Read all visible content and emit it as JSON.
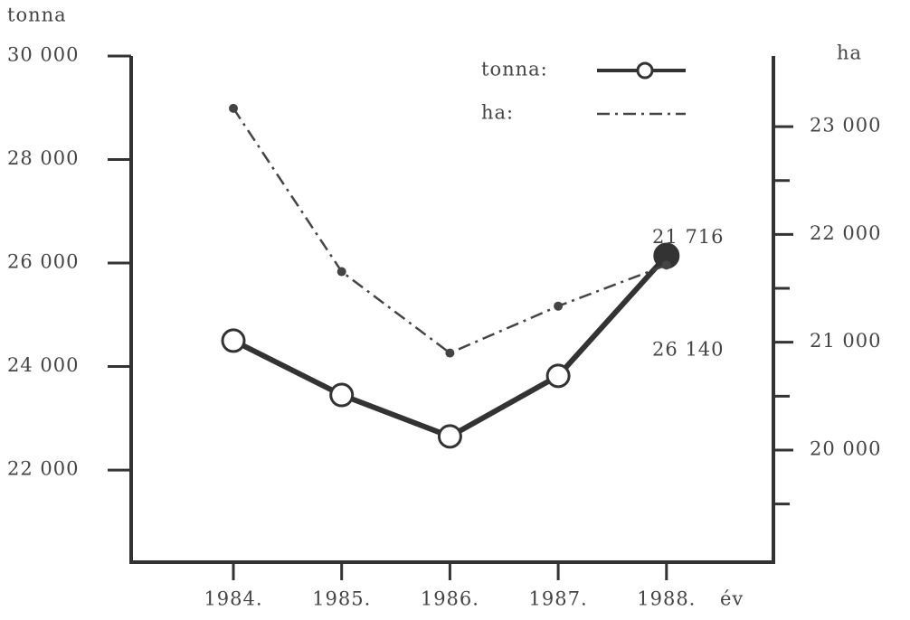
{
  "chart_data": {
    "type": "line",
    "y_label": "tonna",
    "y2_label": "ha",
    "x_label": "év",
    "categories": [
      "1984.",
      "1985.",
      "1986.",
      "1987.",
      "1988."
    ],
    "series": [
      {
        "name": "tonna:",
        "color": "#333333",
        "values": [
          24500,
          23450,
          22650,
          23820,
          26140
        ],
        "value_labels": [
          null,
          null,
          null,
          null,
          "26 140"
        ]
      },
      {
        "name": "ha:",
        "color": "#444444",
        "axis": "y2",
        "values": [
          23170,
          21655,
          20900,
          21335,
          21716
        ],
        "value_labels": [
          null,
          null,
          null,
          null,
          "21 716"
        ]
      }
    ],
    "ylim": [
      20220,
      30000
    ],
    "yticks": [
      {
        "value": 22000,
        "label": "22 000"
      },
      {
        "value": 24000,
        "label": "24 000"
      },
      {
        "value": 26000,
        "label": "26 000"
      },
      {
        "value": 28000,
        "label": "28 000"
      },
      {
        "value": 30000,
        "label": "30 000"
      }
    ],
    "y2lim": [
      18960,
      23655
    ],
    "y2ticks": [
      {
        "value": 20000,
        "label": "20 000"
      },
      {
        "value": 21000,
        "label": "21 000"
      },
      {
        "value": 22000,
        "label": "22 000"
      },
      {
        "value": 23000,
        "label": "23 000"
      }
    ],
    "y2minor_ticks": [
      19500,
      20500,
      21500,
      22500
    ],
    "legend": "top-right"
  }
}
